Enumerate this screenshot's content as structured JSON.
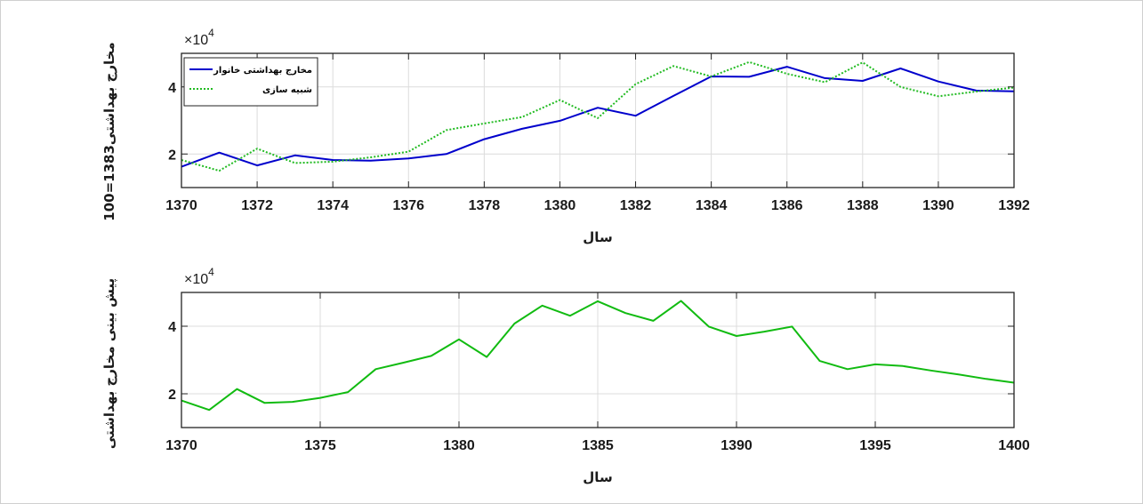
{
  "chart_data": [
    {
      "type": "line",
      "xlabel": "سال",
      "ylabel": "مخارج بهداشتی1383=100",
      "y_exponent_label": "×10",
      "y_exponent_power": "4",
      "xlim": [
        1370,
        1392
      ],
      "ylim": [
        10000,
        50000
      ],
      "xticks": [
        1370,
        1372,
        1374,
        1376,
        1378,
        1380,
        1382,
        1384,
        1386,
        1388,
        1390,
        1392
      ],
      "yticks": [
        20000,
        40000
      ],
      "ytick_labels": [
        "2",
        "4"
      ],
      "grid": true,
      "legend_position": "top-left",
      "x": [
        1370,
        1371,
        1372,
        1373,
        1374,
        1375,
        1376,
        1377,
        1378,
        1379,
        1380,
        1381,
        1382,
        1383,
        1384,
        1385,
        1386,
        1387,
        1388,
        1389,
        1390,
        1391,
        1392
      ],
      "series": [
        {
          "name": "مخارج بهداشتی خانوار",
          "color": "#0000cc",
          "style": "solid",
          "values": [
            16200,
            20400,
            16600,
            19600,
            18200,
            18000,
            18700,
            20000,
            24400,
            27500,
            29900,
            33800,
            31400,
            37300,
            43100,
            43000,
            46000,
            42600,
            41800,
            45500,
            41600,
            38900,
            38700
          ]
        },
        {
          "name": "شبیه سازی",
          "color": "#22bb22",
          "style": "dotted",
          "values": [
            18200,
            15000,
            21600,
            17300,
            17700,
            19000,
            20700,
            27100,
            29100,
            31000,
            36100,
            30700,
            40800,
            46200,
            43100,
            47400,
            43900,
            41400,
            47300,
            40000,
            37200,
            38600,
            39800
          ]
        }
      ]
    },
    {
      "type": "line",
      "xlabel": "سال",
      "ylabel": "پیش بینی مخارج بهداشتی",
      "y_exponent_label": "×10",
      "y_exponent_power": "4",
      "xlim": [
        1370,
        1400
      ],
      "ylim": [
        10000,
        50000
      ],
      "xticks": [
        1370,
        1375,
        1380,
        1385,
        1390,
        1395,
        1400
      ],
      "yticks": [
        20000,
        40000
      ],
      "ytick_labels": [
        "2",
        "4"
      ],
      "grid": true,
      "x": [
        1370,
        1371,
        1372,
        1373,
        1374,
        1375,
        1376,
        1377,
        1378,
        1379,
        1380,
        1381,
        1382,
        1383,
        1384,
        1385,
        1386,
        1387,
        1388,
        1389,
        1390,
        1391,
        1392,
        1393,
        1394,
        1395,
        1396,
        1397,
        1398,
        1399,
        1400
      ],
      "series": [
        {
          "color": "#11bb11",
          "style": "solid",
          "values": [
            18000,
            15200,
            21400,
            17300,
            17600,
            18800,
            20500,
            27300,
            29200,
            31200,
            36100,
            30900,
            40800,
            46100,
            43100,
            47400,
            43900,
            41600,
            47500,
            39900,
            37100,
            38400,
            39900,
            29700,
            27300,
            28700,
            28200,
            26900,
            25700,
            24400,
            23300
          ]
        }
      ]
    }
  ]
}
